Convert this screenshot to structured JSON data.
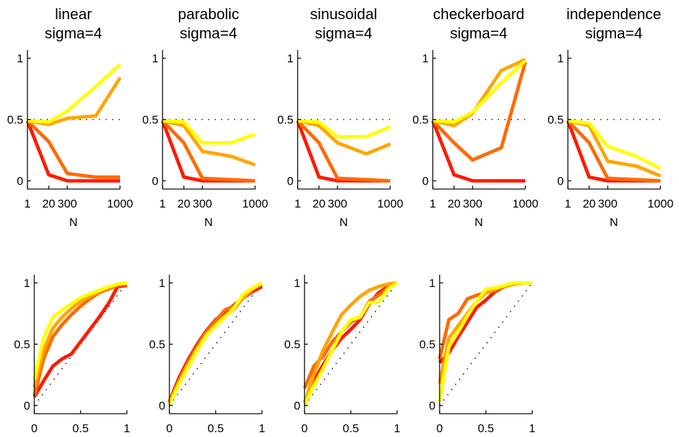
{
  "colors": [
    "#ff1a00",
    "#ff6a00",
    "#ffa500",
    "#ffff00"
  ],
  "chart_data": [
    {
      "type": "line",
      "row": "top",
      "title": [
        "linear",
        "sigma=4"
      ],
      "xlabel": "N",
      "xticks": [
        "1",
        "20",
        "300",
        "1000"
      ],
      "ylim": [
        0,
        1
      ],
      "yticks": [
        "0",
        "0.5",
        "1"
      ],
      "reference_line": 0.5,
      "series": [
        {
          "x": [
            1,
            20,
            300,
            1000
          ],
          "values": [
            0.49,
            0.05,
            0.0,
            0.0
          ]
        },
        {
          "x": [
            1,
            20,
            300,
            600,
            1000
          ],
          "values": [
            0.49,
            0.32,
            0.06,
            0.03,
            0.03
          ]
        },
        {
          "x": [
            1,
            20,
            300,
            600,
            1000
          ],
          "values": [
            0.49,
            0.46,
            0.51,
            0.53,
            0.84
          ]
        },
        {
          "x": [
            1,
            20,
            300,
            600,
            1000
          ],
          "values": [
            0.49,
            0.48,
            0.57,
            0.77,
            0.95
          ]
        }
      ]
    },
    {
      "type": "line",
      "row": "top",
      "title": [
        "parabolic",
        "sigma=4"
      ],
      "xlabel": "N",
      "xticks": [
        "1",
        "20",
        "300",
        "1000"
      ],
      "ylim": [
        0,
        1
      ],
      "yticks": [
        "0",
        "0.5",
        "1"
      ],
      "reference_line": 0.5,
      "series": [
        {
          "x": [
            1,
            20,
            300,
            1000
          ],
          "values": [
            0.49,
            0.03,
            0.0,
            0.0
          ]
        },
        {
          "x": [
            1,
            20,
            300,
            600,
            1000
          ],
          "values": [
            0.49,
            0.31,
            0.02,
            0.01,
            0.0
          ]
        },
        {
          "x": [
            1,
            20,
            300,
            600,
            1000
          ],
          "values": [
            0.49,
            0.45,
            0.24,
            0.2,
            0.13
          ]
        },
        {
          "x": [
            1,
            20,
            300,
            600,
            1000
          ],
          "values": [
            0.49,
            0.48,
            0.31,
            0.31,
            0.38
          ]
        }
      ]
    },
    {
      "type": "line",
      "row": "top",
      "title": [
        "sinusoidal",
        "sigma=4"
      ],
      "xlabel": "N",
      "xticks": [
        "1",
        "20",
        "300",
        "1000"
      ],
      "ylim": [
        0,
        1
      ],
      "yticks": [
        "0",
        "0.5",
        "1"
      ],
      "reference_line": 0.5,
      "series": [
        {
          "x": [
            1,
            20,
            300,
            1000
          ],
          "values": [
            0.49,
            0.03,
            0.0,
            0.0
          ]
        },
        {
          "x": [
            1,
            20,
            300,
            600,
            1000
          ],
          "values": [
            0.49,
            0.31,
            0.02,
            0.01,
            0.0
          ]
        },
        {
          "x": [
            1,
            20,
            300,
            600,
            1000
          ],
          "values": [
            0.49,
            0.45,
            0.31,
            0.22,
            0.3
          ]
        },
        {
          "x": [
            1,
            20,
            300,
            600,
            1000
          ],
          "values": [
            0.49,
            0.48,
            0.36,
            0.36,
            0.44
          ]
        }
      ]
    },
    {
      "type": "line",
      "row": "top",
      "title": [
        "checkerboard",
        "sigma=4"
      ],
      "xlabel": "N",
      "xticks": [
        "1",
        "20",
        "300",
        "1000"
      ],
      "ylim": [
        0,
        1
      ],
      "yticks": [
        "0",
        "0.5",
        "1"
      ],
      "reference_line": 0.5,
      "series": [
        {
          "x": [
            1,
            20,
            300,
            1000
          ],
          "values": [
            0.49,
            0.05,
            0.0,
            0.0
          ]
        },
        {
          "x": [
            1,
            20,
            300,
            600,
            1000
          ],
          "values": [
            0.49,
            0.31,
            0.17,
            0.27,
            0.97
          ]
        },
        {
          "x": [
            1,
            20,
            300,
            600,
            1000
          ],
          "values": [
            0.49,
            0.45,
            0.55,
            0.9,
            0.99
          ]
        },
        {
          "x": [
            1,
            20,
            300,
            600,
            1000
          ],
          "values": [
            0.49,
            0.48,
            0.56,
            0.8,
            0.98
          ]
        }
      ]
    },
    {
      "type": "line",
      "row": "top",
      "title": [
        "independence",
        "sigma=4"
      ],
      "xlabel": "N",
      "xticks": [
        "1",
        "20",
        "300",
        "1000"
      ],
      "ylim": [
        0,
        1
      ],
      "yticks": [
        "0",
        "0.5",
        "1"
      ],
      "reference_line": 0.5,
      "series": [
        {
          "x": [
            1,
            20,
            300,
            1000
          ],
          "values": [
            0.49,
            0.03,
            0.0,
            0.0
          ]
        },
        {
          "x": [
            1,
            20,
            300,
            600,
            1000
          ],
          "values": [
            0.49,
            0.31,
            0.02,
            0.01,
            0.0
          ]
        },
        {
          "x": [
            1,
            20,
            300,
            600,
            1000
          ],
          "values": [
            0.49,
            0.45,
            0.16,
            0.12,
            0.04
          ]
        },
        {
          "x": [
            1,
            20,
            300,
            600,
            1000
          ],
          "values": [
            0.49,
            0.47,
            0.28,
            0.2,
            0.1
          ]
        }
      ]
    },
    {
      "type": "line",
      "row": "bottom",
      "xticks": [
        "0",
        "0.5",
        "1"
      ],
      "xlim": [
        0,
        1
      ],
      "ylim": [
        0,
        1
      ],
      "yticks": [
        "0",
        "0.5",
        "1"
      ],
      "reference_line": "diagonal",
      "series": [
        {
          "x": [
            0,
            0.1,
            0.2,
            0.3,
            0.4,
            0.5,
            0.6,
            0.7,
            0.8,
            0.9,
            1.0
          ],
          "values": [
            0.07,
            0.2,
            0.32,
            0.38,
            0.42,
            0.52,
            0.62,
            0.72,
            0.83,
            0.97,
            0.98
          ]
        },
        {
          "x": [
            0,
            0.1,
            0.2,
            0.3,
            0.4,
            0.5,
            0.6,
            0.7,
            0.8,
            0.9,
            1.0
          ],
          "values": [
            0.08,
            0.38,
            0.56,
            0.66,
            0.74,
            0.81,
            0.87,
            0.92,
            0.95,
            0.98,
            0.99
          ]
        },
        {
          "x": [
            0,
            0.1,
            0.2,
            0.3,
            0.4,
            0.5,
            0.6,
            0.7,
            0.8,
            0.9,
            1.0
          ],
          "values": [
            0.15,
            0.45,
            0.63,
            0.72,
            0.79,
            0.85,
            0.89,
            0.93,
            0.96,
            0.99,
            1.0
          ]
        },
        {
          "x": [
            0,
            0.1,
            0.2,
            0.3,
            0.4,
            0.5,
            0.6,
            0.7,
            0.8,
            0.9,
            1.0
          ],
          "values": [
            0.21,
            0.55,
            0.72,
            0.78,
            0.83,
            0.88,
            0.91,
            0.94,
            0.97,
            0.99,
            1.0
          ]
        }
      ]
    },
    {
      "type": "line",
      "row": "bottom",
      "xticks": [
        "0",
        "0.5",
        "1"
      ],
      "xlim": [
        0,
        1
      ],
      "ylim": [
        0,
        1
      ],
      "yticks": [
        "0",
        "0.5",
        "1"
      ],
      "reference_line": "diagonal",
      "series": [
        {
          "x": [
            0,
            0.1,
            0.2,
            0.3,
            0.4,
            0.5,
            0.6,
            0.7,
            0.8,
            0.9,
            1.0
          ],
          "values": [
            0.03,
            0.22,
            0.37,
            0.5,
            0.61,
            0.7,
            0.76,
            0.82,
            0.88,
            0.93,
            0.97
          ]
        },
        {
          "x": [
            0,
            0.1,
            0.2,
            0.3,
            0.4,
            0.5,
            0.6,
            0.7,
            0.8,
            0.9,
            1.0
          ],
          "values": [
            0.02,
            0.2,
            0.35,
            0.48,
            0.6,
            0.69,
            0.78,
            0.81,
            0.88,
            0.95,
            0.99
          ]
        },
        {
          "x": [
            0,
            0.1,
            0.2,
            0.3,
            0.4,
            0.5,
            0.6,
            0.7,
            0.8,
            0.9,
            1.0
          ],
          "values": [
            0.02,
            0.18,
            0.33,
            0.46,
            0.58,
            0.66,
            0.73,
            0.79,
            0.88,
            0.95,
            1.0
          ]
        },
        {
          "x": [
            0,
            0.1,
            0.2,
            0.3,
            0.4,
            0.5,
            0.6,
            0.7,
            0.8,
            0.9,
            1.0
          ],
          "values": [
            0.01,
            0.17,
            0.31,
            0.45,
            0.57,
            0.65,
            0.72,
            0.8,
            0.91,
            0.96,
            1.0
          ]
        }
      ]
    },
    {
      "type": "line",
      "row": "bottom",
      "xticks": [
        "0",
        "0.5",
        "1"
      ],
      "xlim": [
        0,
        1
      ],
      "ylim": [
        0,
        1
      ],
      "yticks": [
        "0",
        "0.5",
        "1"
      ],
      "reference_line": "diagonal",
      "series": [
        {
          "x": [
            0,
            0.1,
            0.2,
            0.3,
            0.4,
            0.5,
            0.6,
            0.7,
            0.8,
            0.9,
            1.0
          ],
          "values": [
            0.02,
            0.2,
            0.33,
            0.45,
            0.55,
            0.62,
            0.7,
            0.83,
            0.92,
            0.97,
            1.0
          ]
        },
        {
          "x": [
            0,
            0.1,
            0.2,
            0.3,
            0.4,
            0.5,
            0.6,
            0.7,
            0.8,
            0.9,
            1.0
          ],
          "values": [
            0.14,
            0.32,
            0.4,
            0.52,
            0.6,
            0.68,
            0.72,
            0.85,
            0.9,
            0.96,
            1.0
          ]
        },
        {
          "x": [
            0,
            0.1,
            0.2,
            0.3,
            0.4,
            0.5,
            0.6,
            0.7,
            0.8,
            0.9,
            1.0
          ],
          "values": [
            0.02,
            0.25,
            0.45,
            0.6,
            0.74,
            0.82,
            0.89,
            0.94,
            0.97,
            0.99,
            1.0
          ]
        },
        {
          "x": [
            0,
            0.1,
            0.2,
            0.3,
            0.4,
            0.5,
            0.6,
            0.7,
            0.8,
            0.9,
            1.0
          ],
          "values": [
            0.01,
            0.16,
            0.3,
            0.45,
            0.6,
            0.7,
            0.72,
            0.84,
            0.84,
            0.95,
            1.0
          ]
        }
      ]
    },
    {
      "type": "line",
      "row": "bottom",
      "xticks": [
        "0",
        "0.5",
        "1"
      ],
      "xlim": [
        0,
        1
      ],
      "ylim": [
        0,
        1
      ],
      "yticks": [
        "0",
        "0.5",
        "1"
      ],
      "reference_line": "diagonal",
      "series": [
        {
          "x": [
            0,
            0.1,
            0.2,
            0.3,
            0.4,
            0.5,
            0.6,
            0.7,
            0.8,
            0.9,
            1.0
          ],
          "values": [
            0.35,
            0.43,
            0.56,
            0.68,
            0.8,
            0.86,
            0.93,
            0.97,
            0.99,
            1.0,
            1.0
          ]
        },
        {
          "x": [
            0,
            0.1,
            0.2,
            0.3,
            0.4,
            0.5,
            0.6,
            0.7,
            0.8,
            0.9,
            1.0
          ],
          "values": [
            0.38,
            0.7,
            0.75,
            0.87,
            0.9,
            0.92,
            0.94,
            0.98,
            0.99,
            1.0,
            1.0
          ]
        },
        {
          "x": [
            0,
            0.1,
            0.2,
            0.3,
            0.4,
            0.5,
            0.6,
            0.7,
            0.8,
            0.9,
            1.0
          ],
          "values": [
            0.18,
            0.55,
            0.65,
            0.75,
            0.85,
            0.92,
            0.95,
            0.97,
            0.99,
            1.0,
            1.0
          ]
        },
        {
          "x": [
            0,
            0.1,
            0.2,
            0.3,
            0.4,
            0.5,
            0.6,
            0.7,
            0.8,
            0.9,
            1.0
          ],
          "values": [
            0.03,
            0.48,
            0.6,
            0.73,
            0.85,
            0.95,
            0.96,
            0.98,
            1.0,
            1.0,
            1.0
          ]
        }
      ]
    }
  ]
}
